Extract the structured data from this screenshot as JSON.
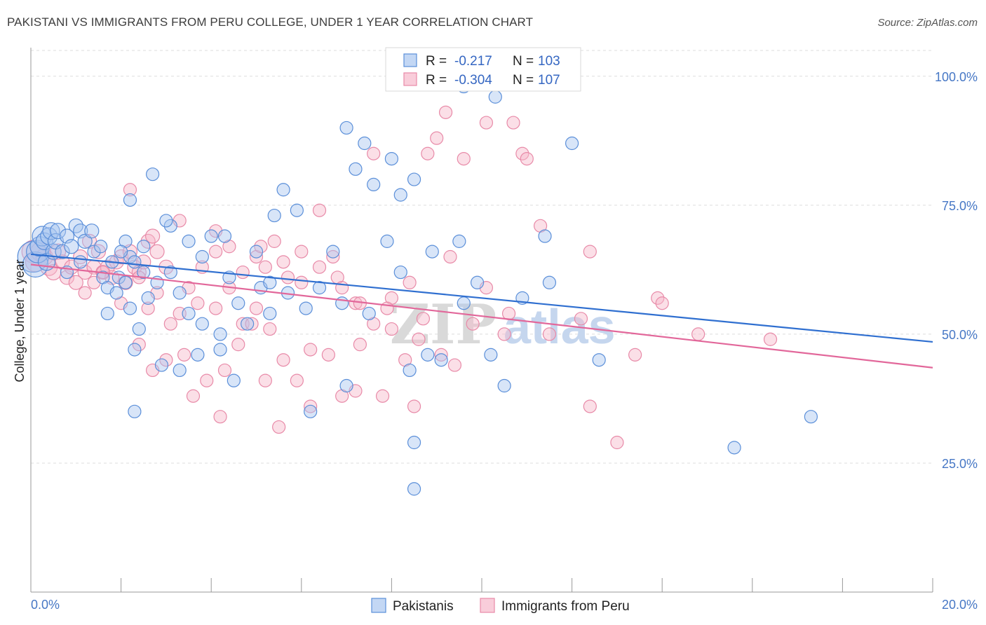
{
  "title": "PAKISTANI VS IMMIGRANTS FROM PERU COLLEGE, UNDER 1 YEAR CORRELATION CHART",
  "source": "Source: ZipAtlas.com",
  "colors": {
    "blue_fill": "#a9c6f0",
    "blue_stroke": "#5b8fd9",
    "blue_line": "#2f6fd0",
    "pink_fill": "#f6b8ca",
    "pink_stroke": "#e88aa8",
    "pink_line": "#e2679a",
    "tick_text": "#4677c5",
    "grid": "#dddddd"
  },
  "chart_data": {
    "type": "scatter",
    "title": "PAKISTANI VS IMMIGRANTS FROM PERU COLLEGE, UNDER 1 YEAR CORRELATION CHART",
    "xlabel": "",
    "ylabel": "College, Under 1 year",
    "xlim": [
      0,
      20
    ],
    "ylim": [
      0,
      105
    ],
    "x_tick_labels": [
      "0.0%",
      "20.0%"
    ],
    "y_ticks": [
      25,
      50,
      75,
      100
    ],
    "y_tick_labels": [
      "25.0%",
      "50.0%",
      "75.0%",
      "100.0%"
    ],
    "grid": true,
    "legend_position": "top-center",
    "legend": [
      {
        "r_label": "R =",
        "r_value": "-0.217",
        "n_label": "N =",
        "n_value": "103"
      },
      {
        "r_label": "R =",
        "r_value": "-0.304",
        "n_label": "N =",
        "n_value": "107"
      }
    ],
    "watermark": "ZIPatlas",
    "series": [
      {
        "name": "Pakistanis",
        "color": "#a9c6f0",
        "trend": {
          "x": [
            0,
            20
          ],
          "y": [
            65.5,
            48.5
          ]
        },
        "points": [
          [
            0.05,
            65,
            22
          ],
          [
            0.1,
            63.5,
            18
          ],
          [
            0.15,
            66,
            16
          ],
          [
            0.2,
            67,
            14
          ],
          [
            0.25,
            69,
            14
          ],
          [
            0.3,
            68,
            12
          ],
          [
            0.35,
            64,
            12
          ],
          [
            0.4,
            69,
            12
          ],
          [
            0.45,
            70,
            12
          ],
          [
            0.5,
            66,
            11
          ],
          [
            0.55,
            68,
            11
          ],
          [
            0.6,
            70,
            11
          ],
          [
            0.7,
            66,
            10
          ],
          [
            0.8,
            69,
            10
          ],
          [
            0.9,
            67,
            10
          ],
          [
            1.0,
            71,
            10
          ],
          [
            1.1,
            70,
            10
          ],
          [
            1.2,
            68,
            10
          ],
          [
            1.35,
            70,
            10
          ],
          [
            0.8,
            62,
            9
          ],
          [
            1.1,
            64,
            9
          ],
          [
            1.4,
            66,
            9
          ],
          [
            1.55,
            67,
            9
          ],
          [
            1.6,
            61,
            9
          ],
          [
            1.7,
            59,
            9
          ],
          [
            1.8,
            64,
            9
          ],
          [
            1.95,
            61,
            9
          ],
          [
            2.1,
            68,
            9
          ],
          [
            2.2,
            65,
            9
          ],
          [
            2.3,
            64,
            9
          ],
          [
            2.5,
            62,
            9
          ],
          [
            1.7,
            54,
            9
          ],
          [
            1.9,
            58,
            9
          ],
          [
            2.0,
            66,
            9
          ],
          [
            2.1,
            60,
            9
          ],
          [
            2.2,
            55,
            9
          ],
          [
            2.4,
            51,
            9
          ],
          [
            2.6,
            57,
            9
          ],
          [
            2.8,
            60,
            9
          ],
          [
            3.1,
            62,
            9
          ],
          [
            3.3,
            58,
            9
          ],
          [
            3.5,
            54,
            9
          ],
          [
            3.8,
            52,
            9
          ],
          [
            2.3,
            47,
            9
          ],
          [
            2.9,
            44,
            9
          ],
          [
            3.3,
            43,
            9
          ],
          [
            3.7,
            46,
            9
          ],
          [
            4.2,
            47,
            9
          ],
          [
            4.5,
            41,
            9
          ],
          [
            4.6,
            56,
            9
          ],
          [
            4.8,
            52,
            9
          ],
          [
            5.3,
            54,
            9
          ],
          [
            2.3,
            35,
            9
          ],
          [
            4.2,
            50,
            9
          ],
          [
            6.1,
            55,
            9
          ],
          [
            6.9,
            56,
            9
          ],
          [
            7.0,
            40,
            9
          ],
          [
            6.2,
            35,
            9
          ],
          [
            7.5,
            54,
            9
          ],
          [
            8.4,
            43,
            9
          ],
          [
            8.5,
            29,
            9
          ],
          [
            8.5,
            20,
            9
          ],
          [
            8.8,
            46,
            9
          ],
          [
            9.1,
            45,
            9
          ],
          [
            9.6,
            56,
            9
          ],
          [
            10.2,
            46,
            9
          ],
          [
            10.5,
            40,
            9
          ],
          [
            2.5,
            67,
            9
          ],
          [
            2.7,
            81,
            9
          ],
          [
            3.1,
            71,
            9
          ],
          [
            3.5,
            68,
            9
          ],
          [
            4.0,
            69,
            9
          ],
          [
            4.3,
            69,
            9
          ],
          [
            5.0,
            66,
            9
          ],
          [
            5.1,
            59,
            9
          ],
          [
            5.4,
            73,
            9
          ],
          [
            5.6,
            78,
            9
          ],
          [
            5.9,
            74,
            9
          ],
          [
            6.7,
            66,
            9
          ],
          [
            7.0,
            90,
            9
          ],
          [
            7.2,
            82,
            9
          ],
          [
            7.4,
            87,
            9
          ],
          [
            7.6,
            79,
            9
          ],
          [
            8.0,
            84,
            9
          ],
          [
            8.2,
            77,
            9
          ],
          [
            8.5,
            80,
            9
          ],
          [
            8.9,
            66,
            9
          ],
          [
            9.5,
            68,
            9
          ],
          [
            9.6,
            98,
            9
          ],
          [
            10.3,
            96,
            9
          ],
          [
            11.5,
            60,
            9
          ],
          [
            12.0,
            87,
            9
          ],
          [
            12.6,
            45,
            9
          ],
          [
            15.6,
            28,
            9
          ],
          [
            17.3,
            34,
            9
          ],
          [
            2.2,
            76,
            9
          ],
          [
            3.0,
            72,
            9
          ],
          [
            3.8,
            65,
            9
          ],
          [
            4.4,
            61,
            9
          ],
          [
            5.3,
            60,
            9
          ],
          [
            5.7,
            58,
            9
          ],
          [
            6.4,
            59,
            9
          ],
          [
            7.9,
            68,
            9
          ],
          [
            8.2,
            62,
            9
          ],
          [
            9.9,
            60,
            9
          ],
          [
            10.9,
            57,
            9
          ],
          [
            11.2,
            100,
            9
          ],
          [
            11.4,
            69,
            9
          ]
        ]
      },
      {
        "name": "Immigrants from Peru",
        "color": "#f6b8ca",
        "trend": {
          "x": [
            0,
            20
          ],
          "y": [
            63.5,
            43.5
          ]
        },
        "points": [
          [
            0.05,
            66,
            16
          ],
          [
            0.1,
            64,
            14
          ],
          [
            0.2,
            66,
            13
          ],
          [
            0.3,
            65,
            12
          ],
          [
            0.4,
            63,
            12
          ],
          [
            0.5,
            62,
            11
          ],
          [
            0.6,
            66,
            11
          ],
          [
            0.7,
            64,
            10
          ],
          [
            0.8,
            61,
            10
          ],
          [
            0.9,
            63,
            10
          ],
          [
            1.0,
            60,
            10
          ],
          [
            1.1,
            65,
            10
          ],
          [
            1.2,
            62,
            10
          ],
          [
            1.3,
            68,
            10
          ],
          [
            1.4,
            63,
            10
          ],
          [
            1.5,
            66,
            10
          ],
          [
            1.6,
            62,
            10
          ],
          [
            1.7,
            63,
            10
          ],
          [
            1.8,
            61,
            10
          ],
          [
            1.9,
            64,
            10
          ],
          [
            2.0,
            65,
            10
          ],
          [
            2.1,
            60,
            10
          ],
          [
            2.2,
            66,
            10
          ],
          [
            2.3,
            63,
            10
          ],
          [
            2.4,
            62,
            10
          ],
          [
            2.5,
            64,
            10
          ],
          [
            2.6,
            68,
            10
          ],
          [
            2.7,
            69,
            10
          ],
          [
            2.8,
            66,
            10
          ],
          [
            3.0,
            63,
            10
          ],
          [
            1.2,
            58,
            9
          ],
          [
            1.4,
            60,
            9
          ],
          [
            1.6,
            62,
            9
          ],
          [
            2.0,
            56,
            9
          ],
          [
            2.4,
            61,
            9
          ],
          [
            2.6,
            55,
            9
          ],
          [
            2.8,
            58,
            9
          ],
          [
            3.1,
            52,
            9
          ],
          [
            3.3,
            54,
            9
          ],
          [
            3.5,
            59,
            9
          ],
          [
            3.7,
            56,
            9
          ],
          [
            4.1,
            55,
            9
          ],
          [
            4.4,
            59,
            9
          ],
          [
            4.7,
            52,
            9
          ],
          [
            5.0,
            55,
            9
          ],
          [
            5.2,
            63,
            9
          ],
          [
            2.4,
            48,
            9
          ],
          [
            2.7,
            43,
            9
          ],
          [
            3.0,
            45,
            9
          ],
          [
            3.4,
            46,
            9
          ],
          [
            3.6,
            38,
            9
          ],
          [
            3.9,
            41,
            9
          ],
          [
            4.3,
            43,
            9
          ],
          [
            4.6,
            48,
            9
          ],
          [
            4.9,
            52,
            9
          ],
          [
            5.3,
            51,
            9
          ],
          [
            5.6,
            45,
            9
          ],
          [
            5.9,
            41,
            9
          ],
          [
            6.2,
            36,
            9
          ],
          [
            6.6,
            46,
            9
          ],
          [
            6.9,
            38,
            9
          ],
          [
            7.3,
            48,
            9
          ],
          [
            7.8,
            38,
            9
          ],
          [
            8.3,
            45,
            9
          ],
          [
            8.5,
            36,
            9
          ],
          [
            8.7,
            53,
            9
          ],
          [
            9.1,
            46,
            9
          ],
          [
            10.1,
            59,
            9
          ],
          [
            10.5,
            50,
            9
          ],
          [
            11.5,
            50,
            9
          ],
          [
            12.2,
            53,
            9
          ],
          [
            12.4,
            36,
            9
          ],
          [
            13.0,
            29,
            9
          ],
          [
            13.4,
            46,
            9
          ],
          [
            13.9,
            57,
            9
          ],
          [
            14.8,
            50,
            9
          ],
          [
            16.4,
            49,
            9
          ],
          [
            3.8,
            63,
            9
          ],
          [
            4.1,
            66,
            9
          ],
          [
            4.4,
            67,
            9
          ],
          [
            4.7,
            62,
            9
          ],
          [
            5.0,
            65,
            9
          ],
          [
            5.4,
            68,
            9
          ],
          [
            5.7,
            61,
            9
          ],
          [
            6.0,
            66,
            9
          ],
          [
            6.4,
            63,
            9
          ],
          [
            6.8,
            61,
            9
          ],
          [
            7.2,
            56,
            9
          ],
          [
            7.6,
            52,
            9
          ],
          [
            8.0,
            57,
            9
          ],
          [
            8.4,
            60,
            9
          ],
          [
            9.3,
            65,
            9
          ],
          [
            9.6,
            84,
            9
          ],
          [
            9.8,
            52,
            9
          ],
          [
            10.1,
            91,
            9
          ],
          [
            10.6,
            54,
            9
          ],
          [
            10.9,
            85,
            9
          ],
          [
            11.0,
            84,
            9
          ],
          [
            11.3,
            71,
            9
          ],
          [
            2.2,
            78,
            9
          ],
          [
            3.3,
            72,
            9
          ],
          [
            4.1,
            70,
            9
          ],
          [
            5.1,
            67,
            9
          ],
          [
            5.6,
            64,
            9
          ],
          [
            6.0,
            60,
            9
          ],
          [
            6.4,
            74,
            9
          ],
          [
            6.7,
            65,
            9
          ],
          [
            7.3,
            56,
            9
          ],
          [
            7.9,
            55,
            9
          ],
          [
            8.0,
            51,
            9
          ],
          [
            8.6,
            49,
            9
          ],
          [
            9.4,
            44,
            9
          ],
          [
            6.2,
            47,
            9
          ],
          [
            4.2,
            34,
            9
          ],
          [
            5.2,
            41,
            9
          ],
          [
            5.5,
            32,
            9
          ],
          [
            7.2,
            39,
            9
          ],
          [
            8.8,
            85,
            9
          ],
          [
            9.0,
            88,
            9
          ],
          [
            7.6,
            85,
            9
          ],
          [
            9.2,
            93,
            9
          ],
          [
            10.7,
            91,
            9
          ],
          [
            12.4,
            66,
            9
          ],
          [
            14.0,
            56,
            9
          ],
          [
            6.9,
            59,
            9
          ]
        ]
      }
    ]
  },
  "bottom_legend": [
    {
      "label": "Pakistanis"
    },
    {
      "label": "Immigrants from Peru"
    }
  ]
}
